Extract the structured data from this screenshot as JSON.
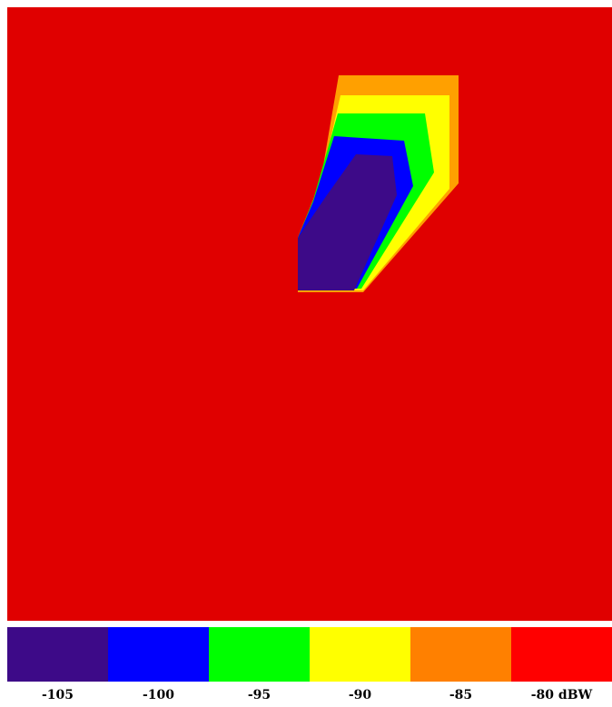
{
  "chart_data": {
    "type": "heatmap",
    "quantity_unit": "dBW",
    "background_level": -80,
    "colorbar": {
      "bins": [
        {
          "value": -105,
          "label": "-105",
          "color": "#3d0a88"
        },
        {
          "value": -100,
          "label": "-100",
          "color": "#0000ff"
        },
        {
          "value": -95,
          "label": "-95",
          "color": "#00ff00"
        },
        {
          "value": -90,
          "label": "-90",
          "color": "#ffff00"
        },
        {
          "value": -85,
          "label": "-85",
          "color": "#ff8000"
        },
        {
          "value": -80,
          "label": "-80 dBW",
          "color": "#ff0000"
        }
      ]
    },
    "field_colors": {
      "background": "#e00000",
      "deep_minimum": "#3d0a88",
      "blue": "#0000ff",
      "green": "#00ff00",
      "yellow": "#ffff00",
      "orange": "#ffa000"
    }
  }
}
